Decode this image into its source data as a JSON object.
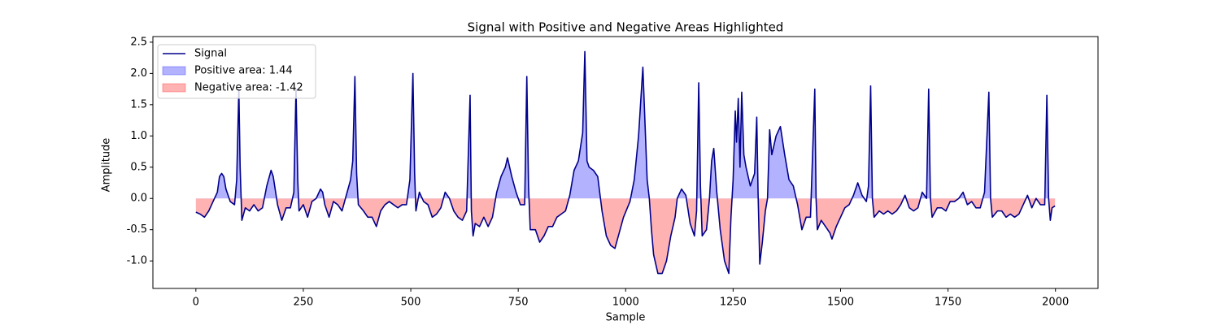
{
  "chart_data": {
    "type": "line",
    "title": "Signal with Positive and Negative Areas Highlighted",
    "xlabel": "Sample",
    "ylabel": "Amplitude",
    "x": [
      0,
      10,
      20,
      30,
      40,
      50,
      55,
      60,
      65,
      70,
      80,
      90,
      95,
      100,
      103,
      107,
      115,
      125,
      135,
      145,
      155,
      165,
      175,
      180,
      190,
      200,
      210,
      220,
      228,
      233,
      237,
      240,
      250,
      260,
      270,
      280,
      290,
      295,
      300,
      310,
      320,
      330,
      340,
      350,
      360,
      365,
      370,
      374,
      378,
      390,
      400,
      410,
      420,
      430,
      440,
      450,
      460,
      470,
      480,
      490,
      498,
      505,
      509,
      512,
      520,
      530,
      540,
      550,
      560,
      570,
      580,
      590,
      600,
      610,
      620,
      630,
      638,
      641,
      645,
      650,
      660,
      670,
      680,
      690,
      700,
      710,
      720,
      725,
      735,
      745,
      755,
      765,
      770,
      774,
      778,
      790,
      800,
      810,
      820,
      830,
      840,
      850,
      860,
      870,
      880,
      890,
      900,
      905,
      910,
      915,
      925,
      935,
      945,
      955,
      965,
      975,
      985,
      995,
      1010,
      1020,
      1030,
      1040,
      1045,
      1050,
      1055,
      1060,
      1065,
      1075,
      1085,
      1095,
      1105,
      1115,
      1120,
      1130,
      1140,
      1150,
      1160,
      1165,
      1170,
      1174,
      1178,
      1188,
      1195,
      1200,
      1205,
      1212,
      1220,
      1230,
      1240,
      1245,
      1250,
      1255,
      1258,
      1262,
      1266,
      1270,
      1275,
      1280,
      1290,
      1300,
      1305,
      1308,
      1312,
      1318,
      1325,
      1330,
      1335,
      1340,
      1350,
      1360,
      1370,
      1380,
      1390,
      1400,
      1410,
      1420,
      1430,
      1440,
      1443,
      1446,
      1455,
      1465,
      1475,
      1480,
      1490,
      1500,
      1510,
      1520,
      1530,
      1540,
      1550,
      1560,
      1565,
      1570,
      1574,
      1578,
      1590,
      1600,
      1610,
      1620,
      1630,
      1640,
      1650,
      1660,
      1670,
      1680,
      1690,
      1700,
      1705,
      1709,
      1713,
      1725,
      1735,
      1745,
      1755,
      1765,
      1775,
      1785,
      1795,
      1805,
      1815,
      1825,
      1835,
      1845,
      1849,
      1853,
      1865,
      1875,
      1885,
      1895,
      1905,
      1915,
      1925,
      1935,
      1945,
      1955,
      1965,
      1975,
      1980,
      1984,
      1988,
      1992,
      1999
    ],
    "series": [
      {
        "name": "Signal",
        "color": "#00008b",
        "values": [
          -0.22,
          -0.25,
          -0.3,
          -0.2,
          -0.05,
          0.1,
          0.35,
          0.4,
          0.35,
          0.15,
          -0.05,
          -0.1,
          0.3,
          1.75,
          0.5,
          -0.35,
          -0.15,
          -0.2,
          -0.1,
          -0.2,
          -0.15,
          0.2,
          0.45,
          0.35,
          -0.1,
          -0.35,
          -0.15,
          -0.15,
          0.1,
          1.75,
          0.3,
          -0.2,
          -0.1,
          -0.3,
          -0.05,
          0.0,
          0.15,
          0.1,
          -0.1,
          -0.3,
          -0.05,
          -0.1,
          -0.2,
          0.05,
          0.3,
          0.6,
          1.95,
          0.4,
          -0.1,
          -0.2,
          -0.3,
          -0.3,
          -0.45,
          -0.2,
          -0.1,
          -0.05,
          -0.1,
          -0.15,
          -0.1,
          -0.1,
          0.3,
          2.0,
          0.4,
          -0.2,
          0.1,
          -0.05,
          -0.1,
          -0.3,
          -0.25,
          -0.15,
          0.1,
          0.0,
          -0.2,
          -0.3,
          -0.35,
          -0.2,
          1.65,
          -0.2,
          -0.6,
          -0.4,
          -0.45,
          -0.3,
          -0.45,
          -0.3,
          0.1,
          0.35,
          0.5,
          0.65,
          0.35,
          0.1,
          -0.1,
          -0.1,
          1.95,
          0.2,
          -0.5,
          -0.5,
          -0.7,
          -0.6,
          -0.45,
          -0.45,
          -0.3,
          -0.25,
          -0.2,
          0.05,
          0.45,
          0.6,
          1.05,
          2.35,
          0.6,
          0.5,
          0.45,
          0.35,
          -0.2,
          -0.6,
          -0.75,
          -0.8,
          -0.55,
          -0.3,
          -0.05,
          0.3,
          1.0,
          2.1,
          1.2,
          0.3,
          0.0,
          -0.5,
          -0.9,
          -1.2,
          -1.2,
          -1.0,
          -0.6,
          -0.3,
          0.0,
          0.15,
          0.05,
          -0.4,
          -0.6,
          -0.2,
          1.85,
          0.2,
          -0.6,
          -0.5,
          0.0,
          0.6,
          0.8,
          0.1,
          -0.5,
          -1.0,
          -1.2,
          -0.3,
          0.3,
          1.4,
          0.9,
          1.6,
          0.5,
          1.7,
          0.7,
          0.5,
          0.2,
          0.4,
          1.3,
          0.1,
          -1.05,
          -0.7,
          -0.2,
          0.0,
          1.1,
          0.7,
          1.0,
          1.15,
          0.7,
          0.3,
          0.2,
          -0.1,
          -0.5,
          -0.3,
          -0.3,
          1.75,
          0.0,
          -0.5,
          -0.35,
          -0.45,
          -0.55,
          -0.65,
          -0.45,
          -0.3,
          -0.15,
          -0.1,
          0.05,
          0.25,
          0.05,
          -0.05,
          0.2,
          1.8,
          0.0,
          -0.3,
          -0.2,
          -0.25,
          -0.2,
          -0.25,
          -0.2,
          -0.1,
          0.05,
          -0.15,
          -0.2,
          -0.15,
          0.1,
          0.0,
          1.75,
          0.0,
          -0.3,
          -0.15,
          -0.15,
          -0.2,
          -0.05,
          -0.05,
          0.0,
          0.1,
          -0.1,
          -0.05,
          -0.15,
          -0.15,
          0.1,
          1.7,
          0.0,
          -0.3,
          -0.2,
          -0.2,
          -0.3,
          -0.25,
          -0.3,
          -0.25,
          -0.1,
          0.05,
          -0.15,
          0.0,
          -0.1,
          -0.1,
          1.65,
          0.0,
          -0.35,
          -0.15,
          -0.12
        ]
      }
    ],
    "areas": [
      {
        "name": "Positive area: 1.44",
        "color": "#0000ff",
        "alpha": 0.3,
        "side": "positive"
      },
      {
        "name": "Negative area: -1.42",
        "color": "#ff0000",
        "alpha": 0.3,
        "side": "negative"
      }
    ],
    "xlim": [
      -99.95,
      2098.95
    ],
    "ylim": [
      -1.44,
      2.59
    ],
    "xticks": [
      0,
      250,
      500,
      750,
      1000,
      1250,
      1500,
      1750,
      2000
    ],
    "yticks": [
      {
        "value": -1.0,
        "label": "-1.0"
      },
      {
        "value": -0.5,
        "label": "-0.5"
      },
      {
        "value": 0.0,
        "label": "0.0"
      },
      {
        "value": 0.5,
        "label": "0.5"
      },
      {
        "value": 1.0,
        "label": "1.0"
      },
      {
        "value": 1.5,
        "label": "1.5"
      },
      {
        "value": 2.0,
        "label": "2.0"
      },
      {
        "value": 2.5,
        "label": "2.5"
      }
    ],
    "legend": "upper left"
  }
}
